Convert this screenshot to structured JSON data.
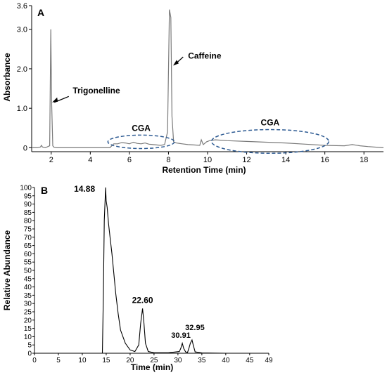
{
  "chart_data": [
    {
      "panel": "A",
      "type": "line",
      "xlabel": "Retention Time (min)",
      "ylabel": "Absorbance",
      "xlim": [
        1,
        19
      ],
      "ylim": [
        -0.1,
        3.6
      ],
      "xticks": [
        2,
        4,
        6,
        8,
        10,
        12,
        14,
        16,
        18
      ],
      "yticks": [
        0,
        1.0,
        2.0,
        3.0,
        3.6
      ],
      "ytick_labels": [
        "0",
        "1.0",
        "2.0",
        "3.0",
        "3.6"
      ],
      "color": "#7a7a7a",
      "x": [
        1.0,
        1.3,
        1.45,
        1.5,
        1.55,
        1.7,
        1.92,
        1.98,
        2.02,
        2.08,
        2.15,
        2.3,
        3.0,
        4.0,
        5.0,
        5.1,
        5.2,
        5.4,
        5.6,
        5.8,
        6.0,
        6.2,
        6.4,
        6.6,
        6.8,
        7.0,
        7.2,
        7.4,
        7.6,
        7.8,
        7.95,
        8.05,
        8.12,
        8.18,
        8.26,
        8.4,
        8.7,
        9.0,
        9.3,
        9.6,
        9.68,
        9.78,
        9.95,
        10.1,
        10.4,
        11.0,
        12.0,
        13.0,
        14.0,
        15.0,
        16.0,
        17.0,
        17.4,
        17.8,
        18.2,
        19.0
      ],
      "y": [
        0.0,
        0.0,
        0.02,
        0.06,
        0.02,
        0.0,
        0.05,
        3.0,
        1.2,
        0.05,
        0.01,
        0.0,
        0.0,
        0.0,
        0.0,
        0.05,
        0.1,
        0.1,
        0.13,
        0.12,
        0.1,
        0.14,
        0.11,
        0.1,
        0.12,
        0.09,
        0.08,
        0.07,
        0.06,
        0.08,
        0.4,
        3.5,
        3.3,
        0.8,
        0.15,
        0.12,
        0.1,
        0.08,
        0.07,
        0.06,
        0.2,
        0.08,
        0.15,
        0.18,
        0.2,
        0.18,
        0.16,
        0.14,
        0.12,
        0.09,
        0.06,
        0.05,
        0.08,
        0.05,
        0.03,
        0.0
      ],
      "annotations": [
        {
          "text": "Trigonelline",
          "x": 2.05,
          "y": 1.15
        },
        {
          "text": "Caffeine",
          "x": 8.2,
          "y": 2.1
        },
        {
          "text": "CGA",
          "x": 6.6,
          "y": 0.15,
          "rx": 1.7,
          "ry": 0.17
        },
        {
          "text": "CGA",
          "x": 13.2,
          "y": 0.16,
          "rx": 3.0,
          "ry": 0.3
        }
      ]
    },
    {
      "panel": "B",
      "type": "line",
      "xlabel": "Time (min)",
      "ylabel": "Relative Abundance",
      "xlim": [
        0,
        49
      ],
      "ylim": [
        0,
        100
      ],
      "xticks": [
        0,
        5,
        10,
        15,
        20,
        25,
        30,
        35,
        40,
        45,
        49
      ],
      "yticks": [
        0,
        5,
        10,
        15,
        20,
        25,
        30,
        35,
        40,
        45,
        50,
        55,
        60,
        65,
        70,
        75,
        80,
        85,
        90,
        95,
        100
      ],
      "color": "#000000",
      "x": [
        0,
        14.2,
        14.4,
        14.6,
        14.88,
        15.0,
        15.2,
        15.5,
        15.8,
        16.2,
        16.6,
        17.0,
        17.5,
        18.0,
        19.0,
        20.0,
        21.0,
        21.8,
        22.2,
        22.6,
        22.9,
        23.2,
        23.8,
        25.0,
        28.0,
        30.3,
        30.6,
        30.91,
        31.2,
        31.6,
        32.0,
        32.3,
        32.6,
        32.95,
        33.2,
        33.6,
        35.0,
        40.0,
        49.0
      ],
      "y": [
        0,
        0,
        35,
        80,
        100,
        92,
        88,
        78,
        70,
        60,
        48,
        36,
        24,
        14,
        6,
        2,
        1,
        5,
        18,
        27,
        18,
        6,
        1,
        0.3,
        0.3,
        1,
        3,
        6,
        3,
        0.8,
        0.5,
        3,
        6,
        8,
        5,
        0.8,
        0.2,
        0,
        0
      ],
      "peaks": [
        {
          "label": "14.88",
          "x": 14.88,
          "y": 100
        },
        {
          "label": "22.60",
          "x": 22.6,
          "y": 27
        },
        {
          "label": "30.91",
          "x": 30.91,
          "y": 6
        },
        {
          "label": "32.95",
          "x": 32.95,
          "y": 8
        }
      ]
    }
  ]
}
